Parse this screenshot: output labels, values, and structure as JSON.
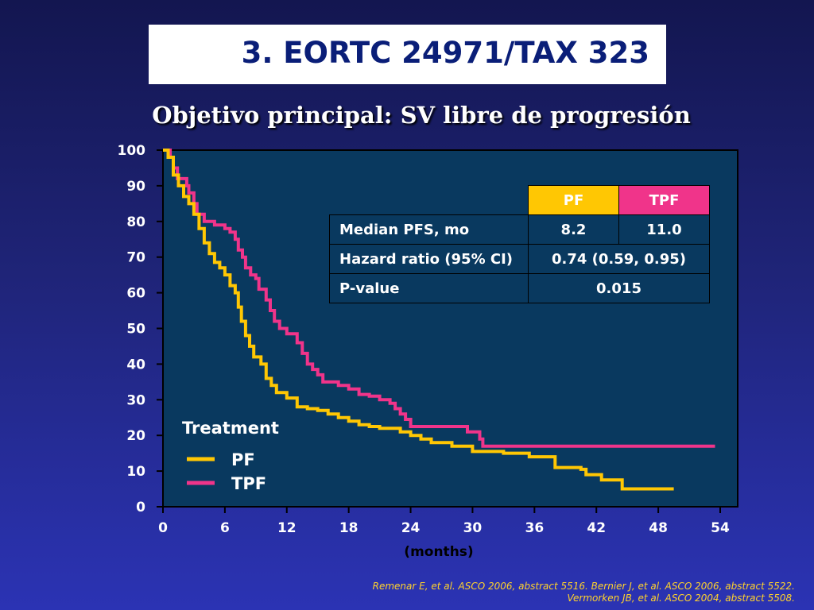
{
  "slide": {
    "title": "3. EORTC 24971/TAX 323",
    "subtitle": "Objetivo principal: SV libre de progresión",
    "references": [
      "Remenar E, et al. ASCO 2006, abstract 5516. Bernier J, et al. ASCO 2006, abstract 5522.",
      "Vermorken JB, et al. ASCO 2004, abstract 5508."
    ]
  },
  "table": {
    "headers": [
      "PF",
      "TPF"
    ],
    "rows": [
      {
        "label": "Median PFS, mo",
        "pf": "8.2",
        "tpf": "11.0"
      },
      {
        "label": "Hazard ratio (95% CI)",
        "value": "0.74 (0.59, 0.95)"
      },
      {
        "label": "P-value",
        "value": "0.015"
      }
    ]
  },
  "chart_data": {
    "type": "line",
    "title": "",
    "xlabel": "(months)",
    "ylabel": "",
    "xlim": [
      0,
      54
    ],
    "ylim": [
      0,
      100
    ],
    "x_ticks": [
      0,
      6,
      12,
      18,
      24,
      30,
      36,
      42,
      48,
      54
    ],
    "y_ticks": [
      0,
      10,
      20,
      30,
      40,
      50,
      60,
      70,
      80,
      90,
      100
    ],
    "grid": false,
    "background": "#09395f",
    "legend": {
      "title": "Treatment",
      "position": "bottom-left"
    },
    "series": [
      {
        "name": "PF",
        "color": "#ffc703",
        "step": true,
        "points": [
          [
            0,
            100
          ],
          [
            0.5,
            98
          ],
          [
            1,
            93
          ],
          [
            1.5,
            90
          ],
          [
            2,
            87
          ],
          [
            2.5,
            85
          ],
          [
            3,
            82
          ],
          [
            3.5,
            78
          ],
          [
            4,
            74
          ],
          [
            4.5,
            71
          ],
          [
            5,
            68.5
          ],
          [
            5.5,
            67
          ],
          [
            6,
            65
          ],
          [
            6.5,
            62
          ],
          [
            7,
            60
          ],
          [
            7.3,
            56
          ],
          [
            7.6,
            52
          ],
          [
            8,
            48
          ],
          [
            8.4,
            45
          ],
          [
            8.8,
            42
          ],
          [
            9.5,
            40
          ],
          [
            10,
            36
          ],
          [
            10.5,
            34
          ],
          [
            11,
            32
          ],
          [
            12,
            30.5
          ],
          [
            13,
            28
          ],
          [
            14,
            27.5
          ],
          [
            15,
            27
          ],
          [
            16,
            26
          ],
          [
            17,
            25
          ],
          [
            18,
            24
          ],
          [
            19,
            23
          ],
          [
            20,
            22.5
          ],
          [
            21,
            22
          ],
          [
            23,
            21
          ],
          [
            24,
            20
          ],
          [
            25,
            19
          ],
          [
            26,
            18
          ],
          [
            28,
            17
          ],
          [
            30,
            15.5
          ],
          [
            33,
            15
          ],
          [
            35.5,
            14
          ],
          [
            38,
            11
          ],
          [
            40.5,
            10.5
          ],
          [
            41,
            9
          ],
          [
            42.5,
            7.5
          ],
          [
            44.5,
            5
          ],
          [
            49.5,
            5
          ]
        ]
      },
      {
        "name": "TPF",
        "color": "#f0348a",
        "step": true,
        "points": [
          [
            0,
            100
          ],
          [
            0.7,
            98
          ],
          [
            1,
            95
          ],
          [
            1.4,
            92
          ],
          [
            2.3,
            90
          ],
          [
            2.5,
            88
          ],
          [
            3,
            85
          ],
          [
            3.3,
            82
          ],
          [
            4,
            80
          ],
          [
            5,
            79
          ],
          [
            6,
            78
          ],
          [
            6.5,
            77
          ],
          [
            7,
            75
          ],
          [
            7.3,
            72
          ],
          [
            7.7,
            70
          ],
          [
            8,
            67
          ],
          [
            8.5,
            65
          ],
          [
            9,
            64
          ],
          [
            9.3,
            61
          ],
          [
            10,
            58
          ],
          [
            10.4,
            55
          ],
          [
            10.8,
            52
          ],
          [
            11.3,
            50
          ],
          [
            12,
            48.5
          ],
          [
            13,
            46
          ],
          [
            13.5,
            43
          ],
          [
            14,
            40
          ],
          [
            14.5,
            38.5
          ],
          [
            15,
            37
          ],
          [
            15.5,
            35
          ],
          [
            17,
            34
          ],
          [
            18,
            33
          ],
          [
            19,
            31.5
          ],
          [
            20,
            31
          ],
          [
            21,
            30
          ],
          [
            22,
            29
          ],
          [
            22.5,
            27.5
          ],
          [
            23,
            26
          ],
          [
            23.5,
            24.5
          ],
          [
            24,
            22.5
          ],
          [
            29.5,
            21
          ],
          [
            30.7,
            19
          ],
          [
            31,
            17
          ],
          [
            53.5,
            17
          ]
        ]
      }
    ]
  }
}
